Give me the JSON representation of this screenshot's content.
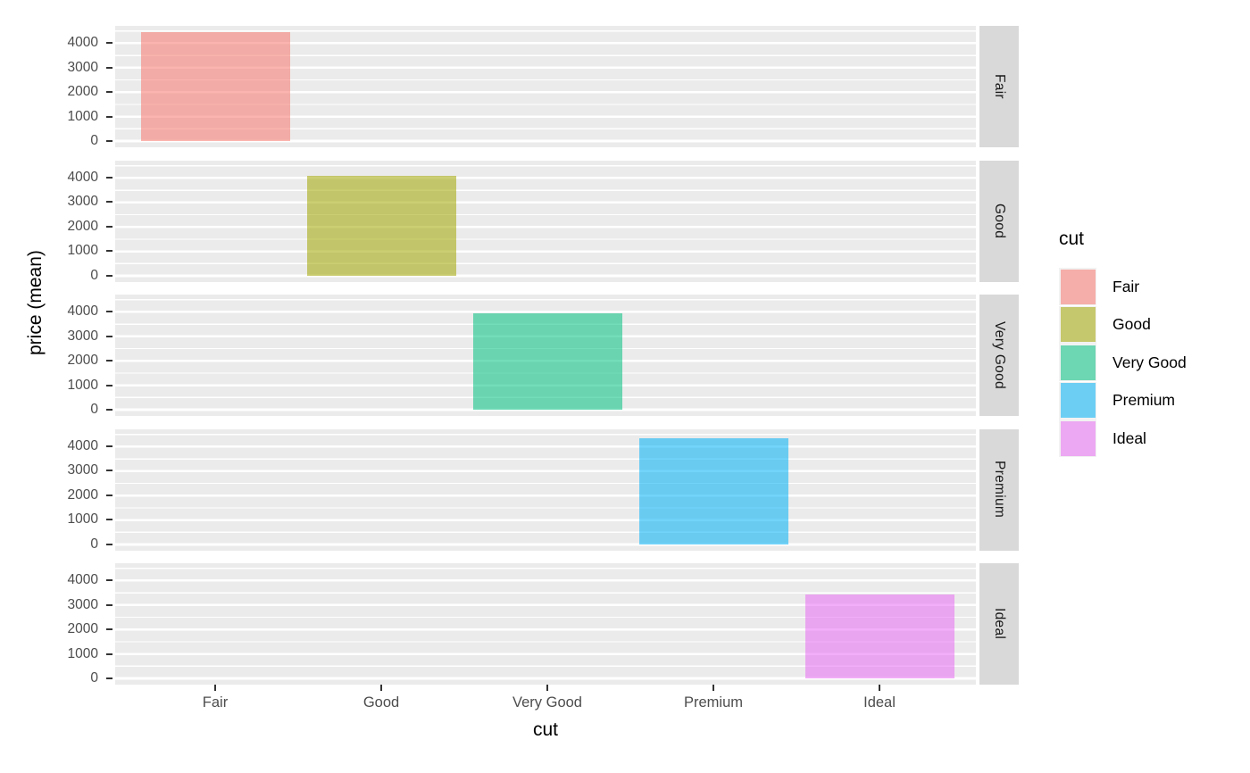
{
  "chart_data": {
    "type": "bar",
    "title": "",
    "xlabel": "cut",
    "ylabel": "price (mean)",
    "categories": [
      "Fair",
      "Good",
      "Very Good",
      "Premium",
      "Ideal"
    ],
    "values": [
      4470,
      4080,
      3930,
      4330,
      3430
    ],
    "facets": [
      "Fair",
      "Good",
      "Very Good",
      "Premium",
      "Ideal"
    ],
    "facet_layout": "one row per cut, strips on right",
    "yticks": [
      0,
      1000,
      2000,
      3000,
      4000
    ],
    "ylim": [
      -230,
      4700
    ],
    "grid": "white major and minor gridlines on grey panel",
    "legend": {
      "title": "cut",
      "position": "right",
      "entries": [
        {
          "label": "Fair",
          "base": "#F8766D",
          "fill": "rgba(248,118,109,0.55)"
        },
        {
          "label": "Good",
          "base": "#A3A500",
          "fill": "rgba(163,165,0,0.55)"
        },
        {
          "label": "Very Good",
          "base": "#00BF7D",
          "fill": "rgba(0,191,125,0.55)"
        },
        {
          "label": "Premium",
          "base": "#00B0F6",
          "fill": "rgba(0,176,246,0.55)"
        },
        {
          "label": "Ideal",
          "base": "#E76BF3",
          "fill": "rgba(231,107,243,0.55)"
        }
      ]
    },
    "colors": {
      "panel_bg": "#EBEBEB",
      "strip_bg": "#D9D9D9",
      "gridline": "#FFFFFF",
      "axis_text": "#4D4D4D",
      "axis_title": "#000000",
      "strip_text": "#1A1A1A",
      "tick_mark": "#333333",
      "background": "#FFFFFF"
    }
  }
}
